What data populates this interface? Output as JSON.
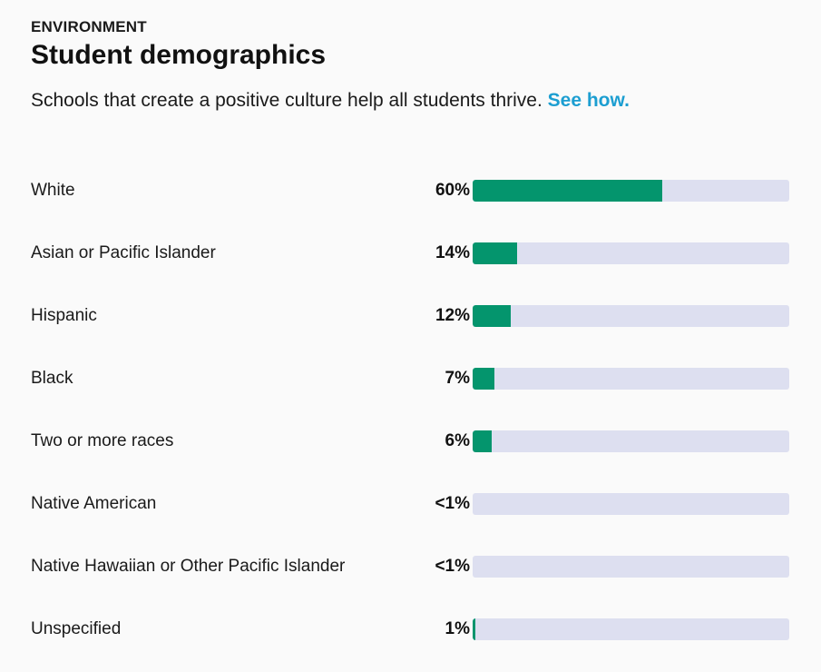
{
  "header": {
    "eyebrow": "ENVIRONMENT",
    "title": "Student demographics",
    "subtitle_text": "Schools that create a positive culture help all students thrive. ",
    "subtitle_link": "See how."
  },
  "colors": {
    "bar_fill": "#04956d",
    "bar_track": "#dddff0",
    "link": "#1c9ed1"
  },
  "chart_data": {
    "type": "bar",
    "orientation": "horizontal",
    "categories": [
      "White",
      "Asian or Pacific Islander",
      "Hispanic",
      "Black",
      "Two or more races",
      "Native American",
      "Native Hawaiian or Other Pacific Islander",
      "Unspecified"
    ],
    "value_labels": [
      "60%",
      "14%",
      "12%",
      "7%",
      "6%",
      "<1%",
      "<1%",
      "1%"
    ],
    "values": [
      60,
      14,
      12,
      7,
      6,
      0,
      0,
      1
    ],
    "xlim": [
      0,
      100
    ],
    "unit": "%"
  }
}
